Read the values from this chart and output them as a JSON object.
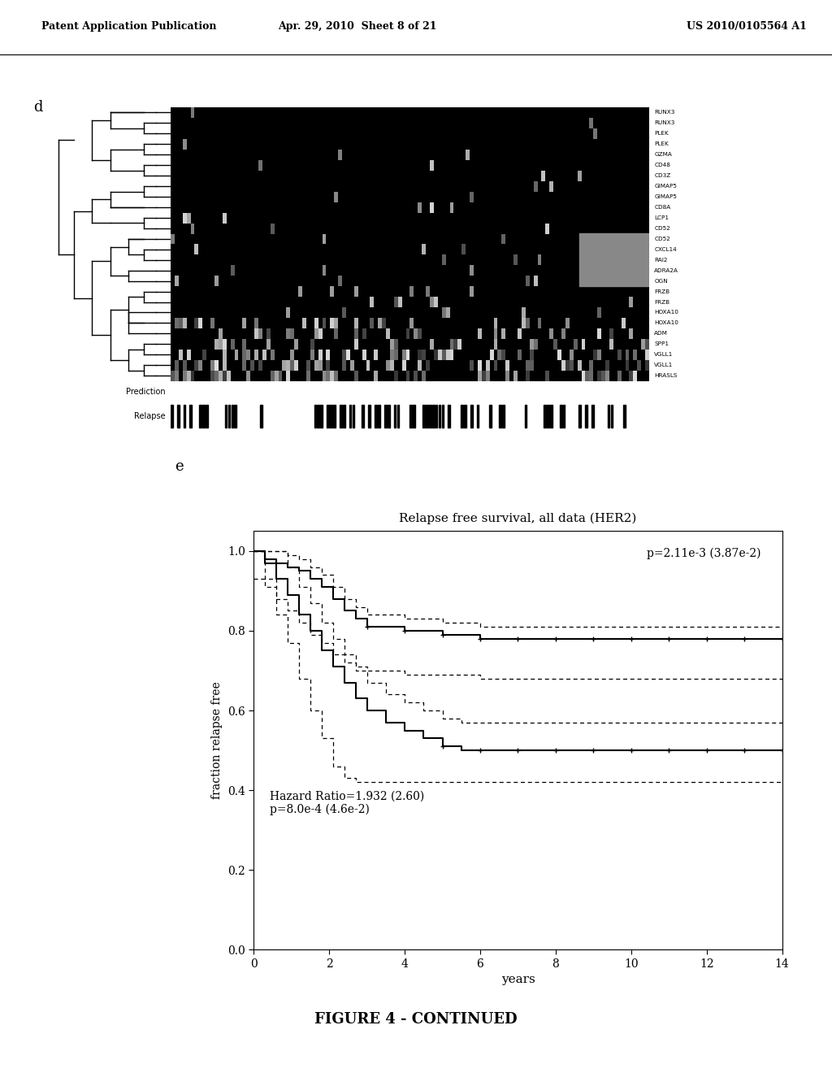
{
  "header_left": "Patent Application Publication",
  "header_mid": "Apr. 29, 2010  Sheet 8 of 21",
  "header_right": "US 2010/0105564 A1",
  "panel_d_label": "d",
  "panel_e_label": "e",
  "gene_labels": [
    "RUNX3",
    "RUNX3",
    "PLEK",
    "PLEK",
    "GZMA",
    "CD48",
    "CD3Z",
    "GIMAP5",
    "GIMAP5",
    "CD8A",
    "LCP1",
    "CD52",
    "CD52",
    "CXCL14",
    "RAI2",
    "ADRA2A",
    "OGN",
    "FRZB",
    "FRZB",
    "HOXA10",
    "HOXA10",
    "ADM",
    "SPP1",
    "VGLL1",
    "VGLL1",
    "HRASLS"
  ],
  "heatmap_rows": 26,
  "heatmap_cols": 120,
  "prediction_label": "Prediction",
  "relapse_label": "Relapse",
  "km_title": "Relapse free survival, all data (HER2)",
  "km_xlabel": "years",
  "km_ylabel": "fraction relapse free",
  "km_yticks": [
    0.0,
    0.2,
    0.4,
    0.6,
    0.8,
    1.0
  ],
  "km_xticks": [
    0,
    2,
    4,
    6,
    8,
    10,
    12,
    14
  ],
  "km_xlim": [
    0,
    14
  ],
  "km_ylim": [
    0.0,
    1.0
  ],
  "km_annotation1": "p=2.11e-3 (3.87e-2)",
  "km_annotation2": "Hazard Ratio=1.932 (2.60)\np=8.0e-4 (4.6e-2)",
  "figure_caption": "FIGURE 4 - CONTINUED",
  "bg_color": "#ffffff",
  "heatmap_bg": "#000000",
  "gray_block_color": "#888888"
}
